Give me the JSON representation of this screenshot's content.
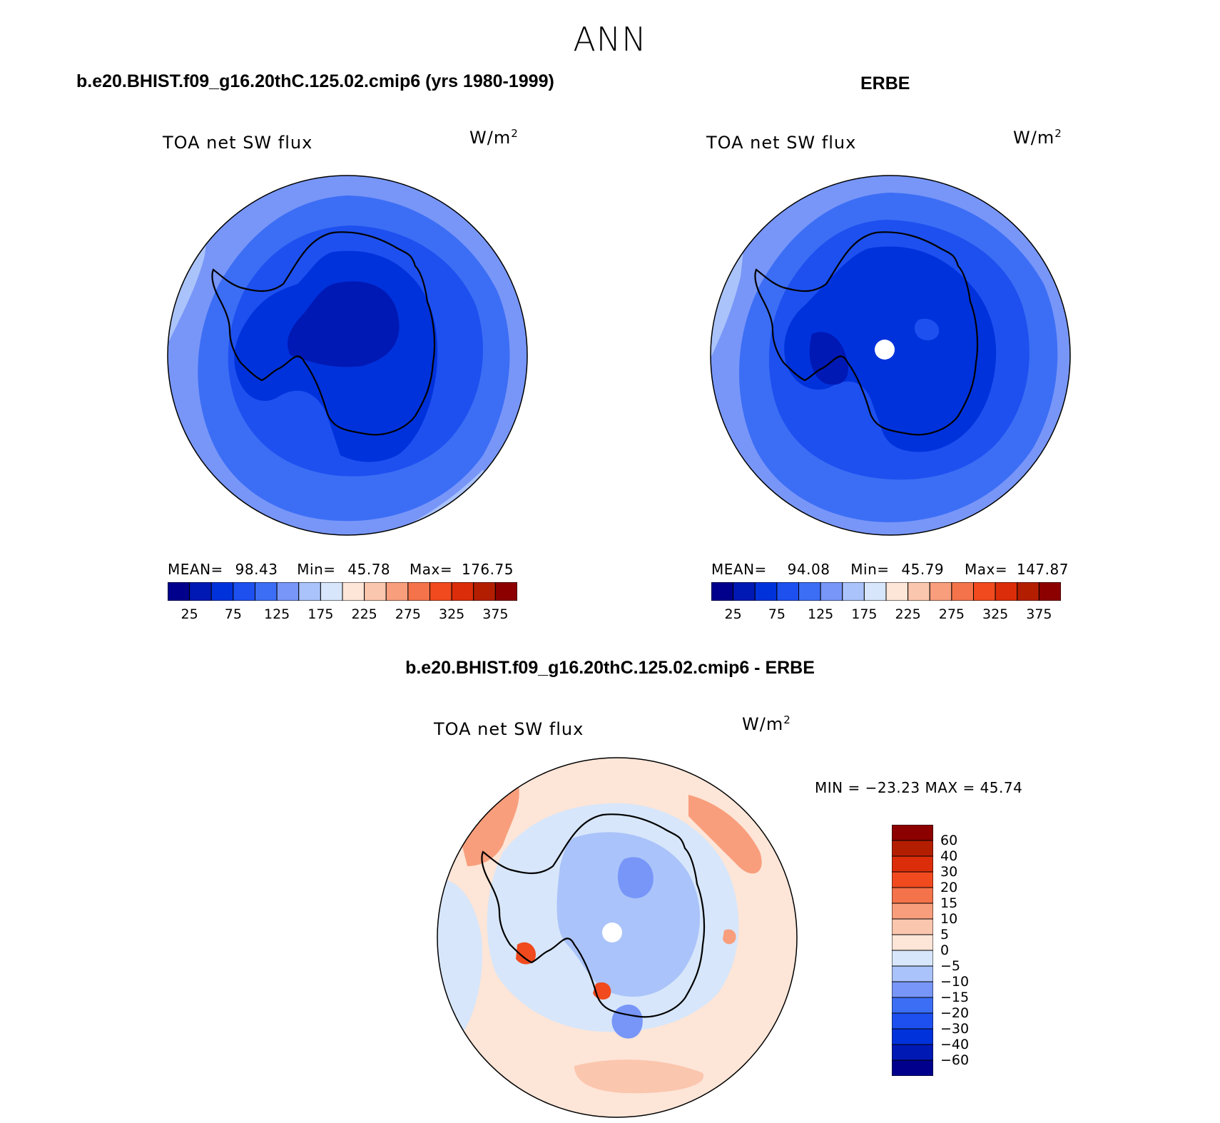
{
  "title": "ANN",
  "panels": [
    {
      "id": "model",
      "title": "b.e20.BHIST.f09_g16.20thC.125.02.cmip6 (yrs 1980-1999)",
      "variable": "TOA net SW flux",
      "units": "W/m",
      "units_exp": "2",
      "stats": {
        "mean_label": "MEAN=",
        "mean": "98.43",
        "min_label": "Min=",
        "min": "45.78",
        "max_label": "Max=",
        "max": "176.75"
      }
    },
    {
      "id": "obs",
      "title": "ERBE",
      "variable": "TOA net SW flux",
      "units": "W/m",
      "units_exp": "2",
      "stats": {
        "mean_label": "MEAN=",
        "mean": "94.08",
        "min_label": "Min=",
        "min": "45.79",
        "max_label": "Max=",
        "max": "147.87"
      }
    },
    {
      "id": "diff",
      "title": "b.e20.BHIST.f09_g16.20thC.125.02.cmip6 - ERBE",
      "variable": "TOA net SW flux",
      "units": "W/m",
      "units_exp": "2",
      "stats_text": "MIN = −23.23 MAX =  45.74"
    }
  ],
  "colorbar_abs": {
    "colors": [
      "#00008c",
      "#0019b4",
      "#0032dc",
      "#1e50f0",
      "#3c6ef5",
      "#7896f8",
      "#aac3fa",
      "#d7e6fa",
      "#fde5d7",
      "#fbc6ae",
      "#f89e7c",
      "#f5734a",
      "#f04a1e",
      "#dc2d0a",
      "#b41e00",
      "#8c0000"
    ],
    "ticks": [
      "25",
      "75",
      "125",
      "175",
      "225",
      "275",
      "325",
      "375"
    ]
  },
  "colorbar_diff": {
    "colors": [
      "#00008c",
      "#0019b4",
      "#0032dc",
      "#1e50f0",
      "#3c6ef5",
      "#7896f8",
      "#aac3fa",
      "#d7e6fa",
      "#fde5d7",
      "#fbc6ae",
      "#f89e7c",
      "#f5734a",
      "#f04a1e",
      "#dc2d0a",
      "#b41e00",
      "#8c0000"
    ],
    "ticks": [
      "60",
      "40",
      "30",
      "20",
      "15",
      "10",
      "5",
      "0",
      "−5",
      "−10",
      "−15",
      "−20",
      "−30",
      "−40",
      "−60"
    ]
  },
  "map_colors": {
    "outer_ring": "#7896f8",
    "light_patch": "#aac3fa",
    "mid_ring": "#3c6ef5",
    "inner_ring": "#1e50f0",
    "antarctica": "#0032dc",
    "deep": "#0019b4",
    "diff_ocean": "#fde5d7",
    "diff_orange": "#f89e7c",
    "diff_light_blue": "#d7e6fa",
    "diff_mid_blue": "#aac3fa",
    "diff_blue": "#7896f8",
    "diff_red": "#f04a1e",
    "pole_hole": "#ffffff",
    "coast": "#000000"
  }
}
